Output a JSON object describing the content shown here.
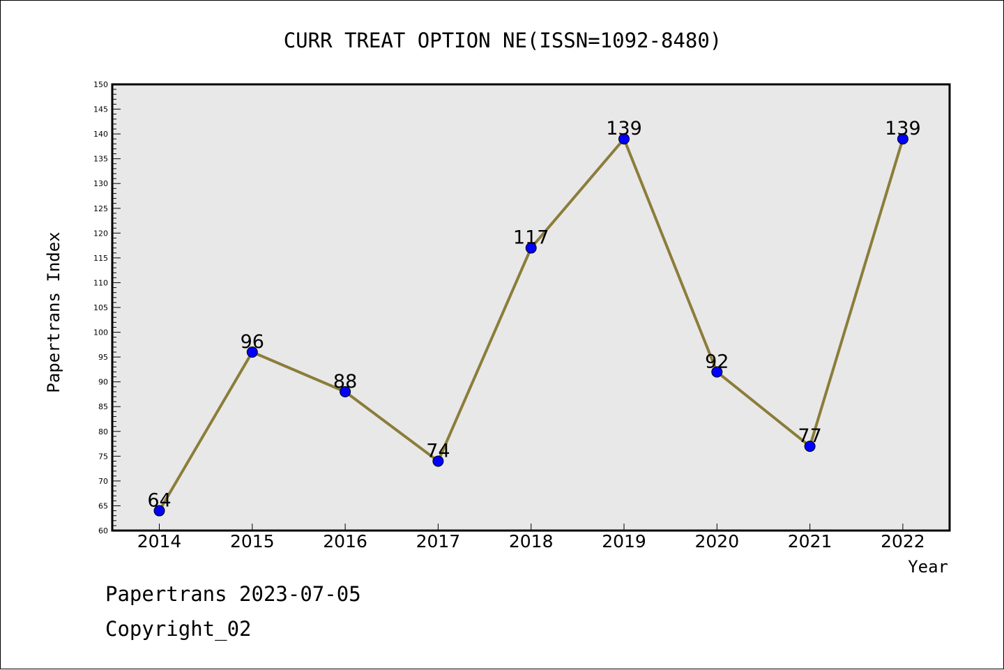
{
  "chart_data": {
    "type": "line",
    "title": "CURR TREAT OPTION NE(ISSN=1092-8480)",
    "xlabel": "Year",
    "ylabel": "Papertrans Index",
    "categories": [
      "2014",
      "2015",
      "2016",
      "2017",
      "2018",
      "2019",
      "2020",
      "2021",
      "2022"
    ],
    "values": [
      64,
      96,
      88,
      74,
      117,
      139,
      92,
      77,
      139
    ],
    "data_labels": [
      "64",
      "96",
      "88",
      "74",
      "117",
      "139",
      "92",
      "77",
      "139"
    ],
    "ylim": [
      60,
      150
    ],
    "yticks": [
      "60",
      "65",
      "70",
      "75",
      "80",
      "85",
      "90",
      "95",
      "100",
      "105",
      "110",
      "115",
      "120",
      "125",
      "130",
      "135",
      "140",
      "145",
      "150"
    ],
    "grid": false,
    "colors": {
      "line": "#8b7d3a",
      "marker": "#0000ff",
      "plot_background": "#e8e8e8"
    }
  },
  "footer": {
    "line1": "Papertrans 2023-07-05",
    "line2": "Copyright_02"
  }
}
